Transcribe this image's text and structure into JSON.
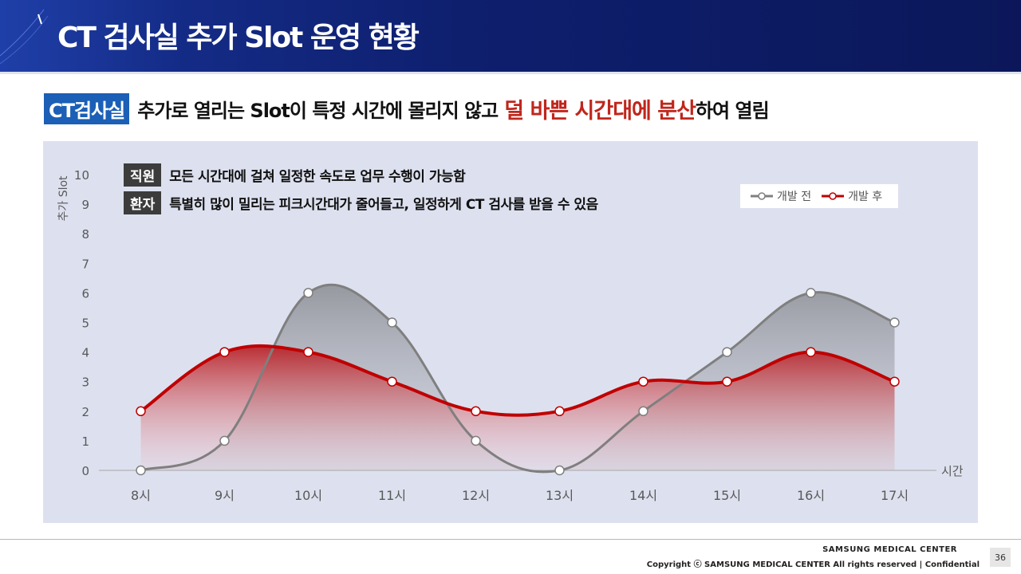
{
  "header": {
    "title": "CT 검사실 추가 Slot 운영 현황"
  },
  "headline": {
    "tag": "CT검사실",
    "text_before": "추가로 열리는 Slot이 특정 시간에 몰리지 않고",
    "accent": "덜 바쁜 시간대에 분산",
    "text_after": "하여 열림"
  },
  "notes": [
    {
      "chip": "직원",
      "text": "모든 시간대에 걸쳐 일정한 속도로 업무 수행이 가능함"
    },
    {
      "chip": "환자",
      "text": "특별히 많이 밀리는 피크시간대가 줄어들고, 일정하게 CT 검사를 받을 수 있음"
    }
  ],
  "chart_data": {
    "type": "area",
    "categories": [
      "8시",
      "9시",
      "10시",
      "11시",
      "12시",
      "13시",
      "14시",
      "15시",
      "16시",
      "17시"
    ],
    "series": [
      {
        "name": "개발 전",
        "values": [
          0,
          1,
          6,
          5,
          1,
          0,
          2,
          4,
          6,
          5
        ],
        "color": "#7f7f7f"
      },
      {
        "name": "개발 후",
        "values": [
          2,
          4,
          4,
          3,
          2,
          2,
          3,
          3,
          4,
          3
        ],
        "color": "#c00000"
      }
    ],
    "ylabel": "추가 Slot",
    "xlabel": "시간",
    "ylim": [
      0,
      10
    ],
    "yticks": [
      "0",
      "1",
      "2",
      "3",
      "4",
      "5",
      "6",
      "7",
      "8",
      "9",
      "10"
    ],
    "smooth": true,
    "legend_position": "top-right",
    "grid": false
  },
  "footer": {
    "brand": "SAMSUNG MEDICAL CENTER",
    "copyright": "Copyright ⓒ SAMSUNG MEDICAL CENTER All rights reserved  |  Confidential",
    "page": "36"
  }
}
